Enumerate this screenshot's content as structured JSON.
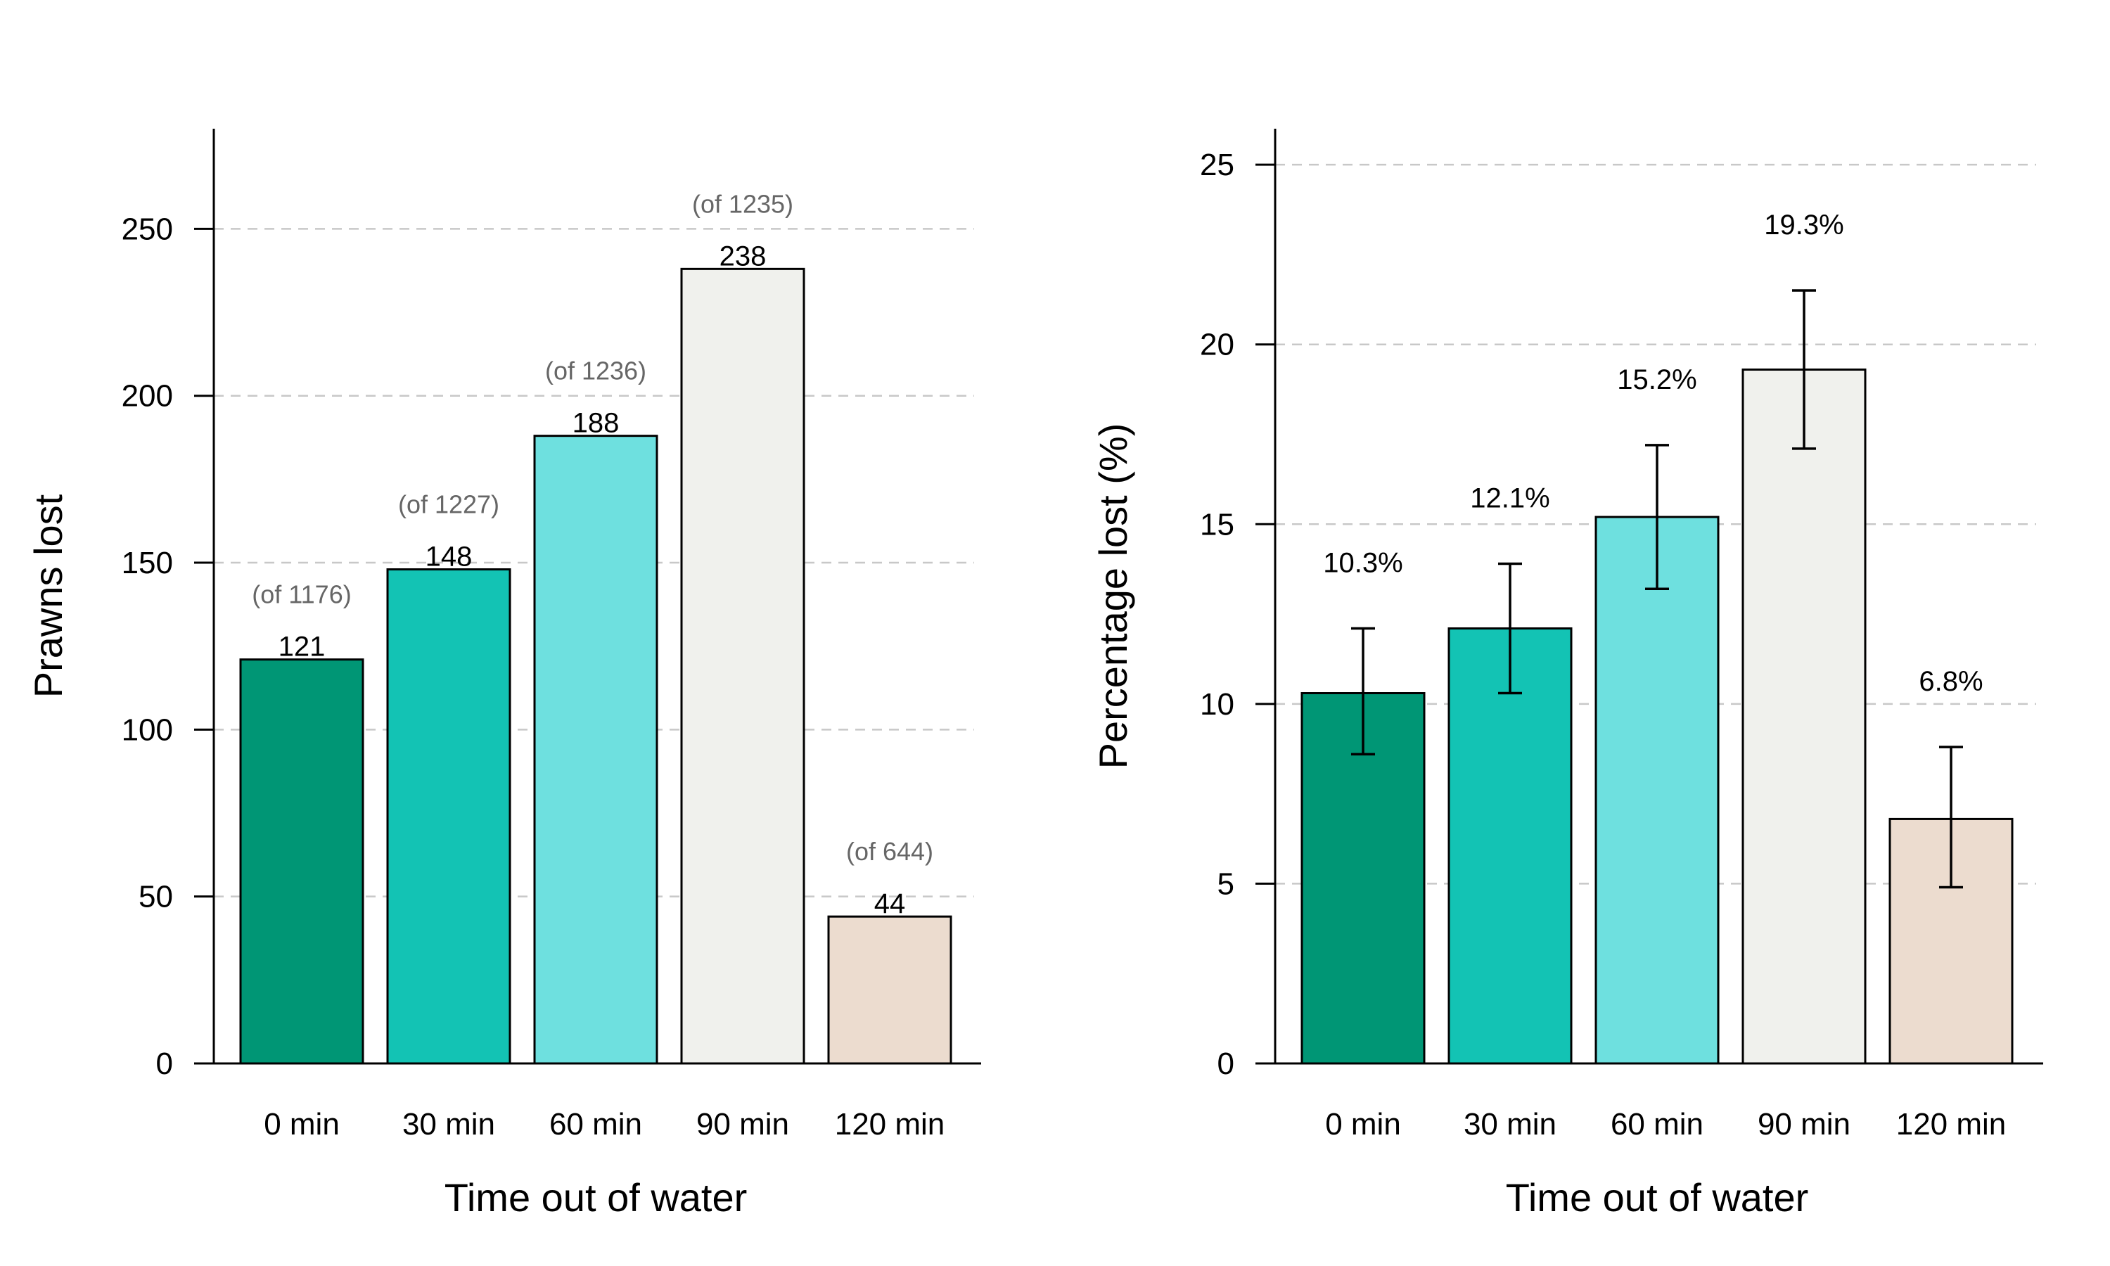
{
  "chart_data": [
    {
      "type": "bar",
      "categories": [
        "0 min",
        "30 min",
        "60 min",
        "90 min",
        "120 min"
      ],
      "values": [
        121,
        148,
        188,
        238,
        44
      ],
      "value_labels": [
        "121",
        "148",
        "188",
        "238",
        "44"
      ],
      "sub_labels": [
        "(of 1176)",
        "(of 1227)",
        "(of 1236)",
        "(of 1235)",
        "(of 644)"
      ],
      "colors": [
        "#009675",
        "#13c3b4",
        "#6ee0df",
        "#f0f1ed",
        "#ecdccf"
      ],
      "xlabel": "Time out of water",
      "ylabel": "Prawns lost",
      "ylim": [
        0,
        280
      ],
      "yticks": [
        0,
        50,
        100,
        150,
        200,
        250
      ],
      "grid": "horizontal dashed"
    },
    {
      "type": "bar",
      "categories": [
        "0 min",
        "30 min",
        "60 min",
        "90 min",
        "120 min"
      ],
      "values": [
        10.3,
        12.1,
        15.2,
        19.3,
        6.8
      ],
      "error_low": [
        8.6,
        10.3,
        13.2,
        17.1,
        4.9
      ],
      "error_high": [
        12.1,
        13.9,
        17.2,
        21.5,
        8.8
      ],
      "value_labels": [
        "10.3%",
        "12.1%",
        "15.2%",
        "19.3%",
        "6.8%"
      ],
      "colors": [
        "#009675",
        "#13c3b4",
        "#6ee0df",
        "#f0f1ed",
        "#ecdccf"
      ],
      "xlabel": "Time out of water",
      "ylabel": "Percentage lost (%)",
      "ylim": [
        0,
        26
      ],
      "yticks": [
        0,
        5,
        10,
        15,
        20,
        25
      ],
      "grid": "horizontal dashed"
    }
  ]
}
